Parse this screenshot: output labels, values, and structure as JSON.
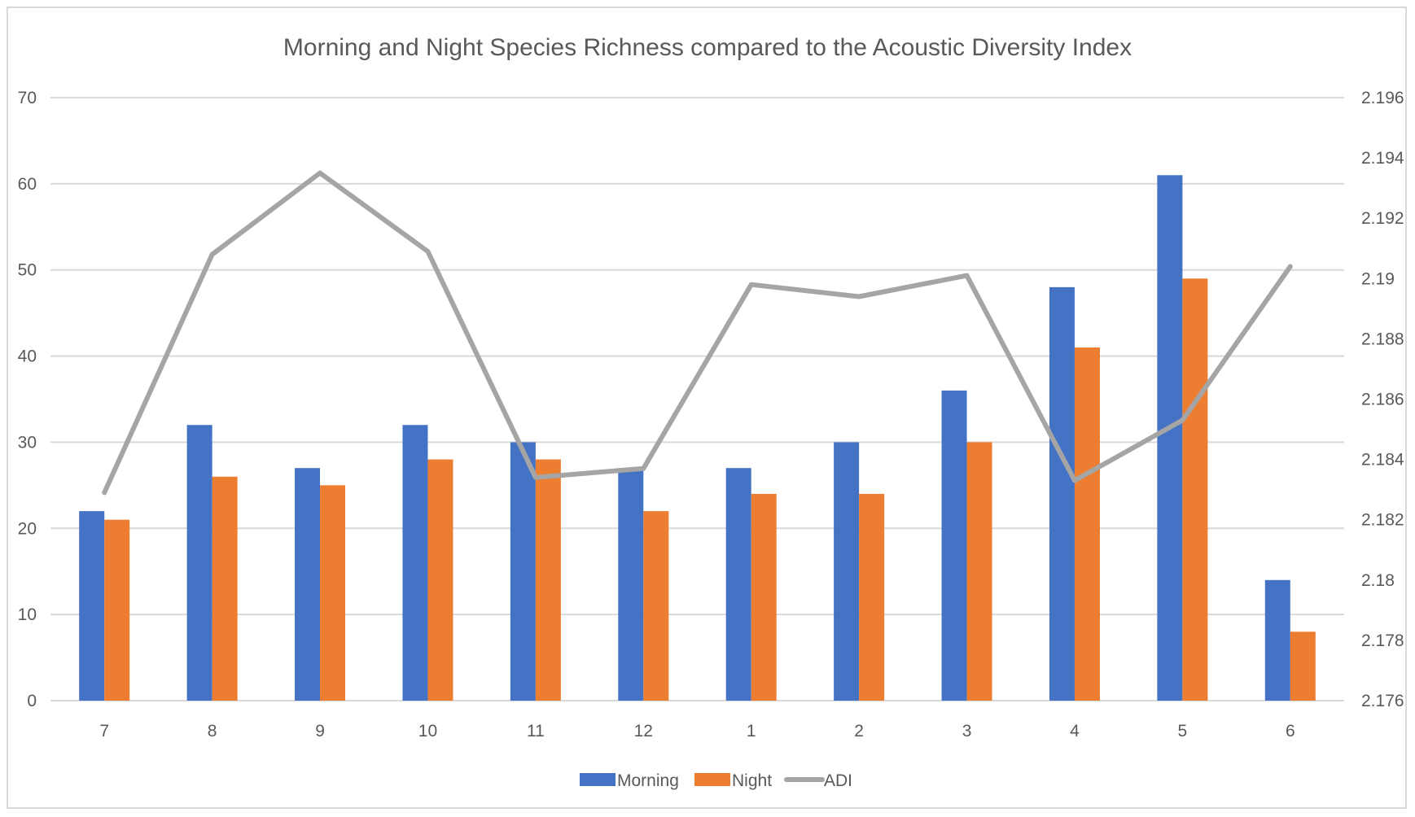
{
  "chart_data": {
    "type": "bar",
    "title": "Morning and Night Species Richness compared to the Acoustic Diversity Index",
    "categories": [
      "7",
      "8",
      "9",
      "10",
      "11",
      "12",
      "1",
      "2",
      "3",
      "4",
      "5",
      "6"
    ],
    "series": [
      {
        "name": "Morning",
        "type": "bar",
        "axis": "left",
        "color": "#4472c4",
        "values": [
          22,
          32,
          27,
          32,
          30,
          27,
          27,
          30,
          36,
          48,
          61,
          14
        ]
      },
      {
        "name": "Night",
        "type": "bar",
        "axis": "left",
        "color": "#ed7d31",
        "values": [
          21,
          26,
          25,
          28,
          28,
          22,
          24,
          24,
          30,
          41,
          49,
          8
        ]
      },
      {
        "name": "ADI",
        "type": "line",
        "axis": "right",
        "color": "#a5a5a5",
        "values": [
          2.1829,
          2.1908,
          2.1935,
          2.1909,
          2.1834,
          2.1837,
          2.1898,
          2.1894,
          2.1901,
          2.1833,
          2.1853,
          2.1904
        ]
      }
    ],
    "left_axis": {
      "ylim": [
        0,
        70
      ],
      "ticks": [
        "0",
        "10",
        "20",
        "30",
        "40",
        "50",
        "60",
        "70"
      ]
    },
    "right_axis": {
      "ylim": [
        2.176,
        2.196
      ],
      "ticks": [
        "2.176",
        "2.178",
        "2.18",
        "2.182",
        "2.184",
        "2.186",
        "2.188",
        "2.19",
        "2.192",
        "2.194",
        "2.196"
      ]
    },
    "xlabel": "",
    "ylabel": "",
    "grid": true,
    "legend_position": "bottom"
  }
}
